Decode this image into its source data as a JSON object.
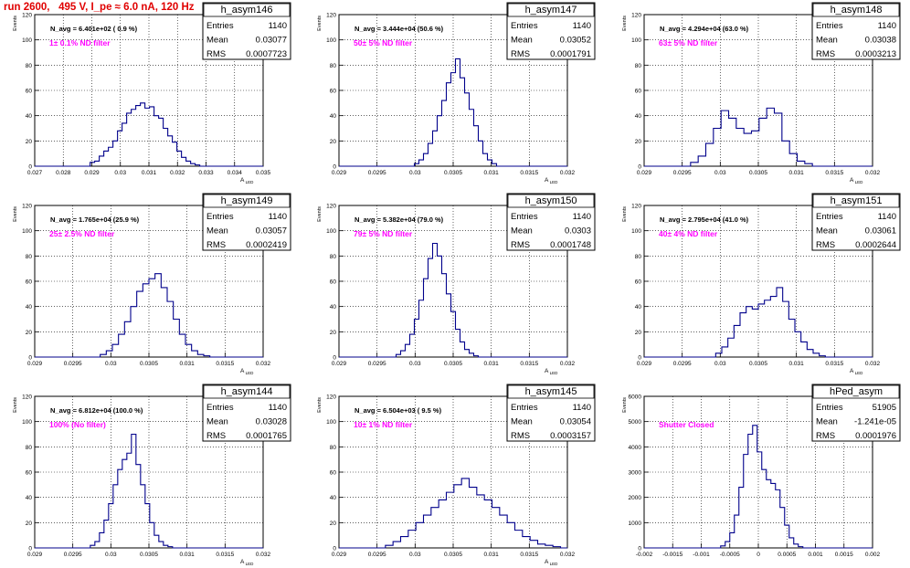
{
  "header": {
    "title": "run 2600,   495 V, I_pe ≈ 6.0 nA, 120 Hz"
  },
  "colors": {
    "title": "#e00000",
    "histogram": "#00008b",
    "annotation": "#ff00ff",
    "grid": "#000000"
  },
  "chart_data": [
    {
      "type": "histogram",
      "name": "h_asym146",
      "navg": "N_avg = 6.401e+02 ( 0.9 %)",
      "note": "1± 0.1% ND filter",
      "stats": [
        [
          "Entries",
          "1140"
        ],
        [
          "Mean",
          "0.03077"
        ],
        [
          "RMS",
          "0.0007723"
        ]
      ],
      "ylabel": "Events",
      "xlabel": "A_LED",
      "xlim": [
        0.027,
        0.035
      ],
      "xticks": [
        "0.027",
        "0.028",
        "0.029",
        "0.03",
        "0.031",
        "0.032",
        "0.033",
        "0.034",
        "0.035"
      ],
      "ylim": [
        0,
        120
      ],
      "yticks": [
        "0",
        "20",
        "40",
        "60",
        "80",
        "100",
        "120"
      ],
      "centers": [
        0.02902,
        0.02918,
        0.02934,
        0.0295,
        0.02966,
        0.02982,
        0.02998,
        0.03014,
        0.0303,
        0.03046,
        0.03062,
        0.03078,
        0.03094,
        0.0311,
        0.03126,
        0.03142,
        0.03158,
        0.03174,
        0.0319,
        0.03206,
        0.03222,
        0.03238,
        0.03254,
        0.0327
      ],
      "values": [
        3,
        4,
        8,
        12,
        15,
        20,
        28,
        34,
        42,
        45,
        48,
        50,
        46,
        47,
        40,
        38,
        30,
        24,
        19,
        12,
        7,
        4,
        2,
        1
      ]
    },
    {
      "type": "histogram",
      "name": "h_asym147",
      "navg": "N_avg = 3.444e+04 (50.6 %)",
      "note": "50± 5% ND filter",
      "stats": [
        [
          "Entries",
          "1140"
        ],
        [
          "Mean",
          "0.03052"
        ],
        [
          "RMS",
          "0.0001791"
        ]
      ],
      "ylabel": "Events",
      "xlabel": "A_LED",
      "xlim": [
        0.029,
        0.032
      ],
      "xticks": [
        "0.029",
        "0.0295",
        "0.03",
        "0.0305",
        "0.031",
        "0.0315",
        "0.032"
      ],
      "ylim": [
        0,
        120
      ],
      "yticks": [
        "0",
        "20",
        "40",
        "60",
        "80",
        "100",
        "120"
      ],
      "centers": [
        0.03002,
        0.03008,
        0.03014,
        0.0302,
        0.03026,
        0.03032,
        0.03038,
        0.03044,
        0.0305,
        0.03056,
        0.03062,
        0.03068,
        0.03074,
        0.0308,
        0.03086,
        0.03092,
        0.03098,
        0.03104
      ],
      "values": [
        2,
        5,
        10,
        18,
        28,
        40,
        52,
        66,
        74,
        85,
        70,
        58,
        45,
        32,
        20,
        10,
        5,
        2
      ]
    },
    {
      "type": "histogram",
      "name": "h_asym148",
      "navg": "N_avg = 4.294e+04 (63.0 %)",
      "note": "63± 5% ND filter",
      "stats": [
        [
          "Entries",
          "1140"
        ],
        [
          "Mean",
          "0.03038"
        ],
        [
          "RMS",
          "0.0003213"
        ]
      ],
      "ylabel": "Events",
      "xlabel": "A_LED",
      "xlim": [
        0.029,
        0.032
      ],
      "xticks": [
        "0.029",
        "0.0295",
        "0.03",
        "0.0305",
        "0.031",
        "0.0315",
        "0.032"
      ],
      "ylim": [
        0,
        120
      ],
      "yticks": [
        "0",
        "20",
        "40",
        "60",
        "80",
        "100",
        "120"
      ],
      "centers": [
        0.02966,
        0.02976,
        0.02986,
        0.02996,
        0.03006,
        0.03016,
        0.03026,
        0.03036,
        0.03046,
        0.03056,
        0.03066,
        0.03076,
        0.03086,
        0.03096,
        0.03106,
        0.03116
      ],
      "values": [
        3,
        8,
        18,
        30,
        44,
        38,
        30,
        26,
        28,
        38,
        46,
        42,
        20,
        10,
        4,
        2
      ]
    },
    {
      "type": "histogram",
      "name": "h_asym149",
      "navg": "N_avg = 1.765e+04 (25.9 %)",
      "note": "25± 2.5% ND filter",
      "stats": [
        [
          "Entries",
          "1140"
        ],
        [
          "Mean",
          "0.03057"
        ],
        [
          "RMS",
          "0.0002419"
        ]
      ],
      "ylabel": "Events",
      "xlabel": "A_LED",
      "xlim": [
        0.029,
        0.032
      ],
      "xticks": [
        "0.029",
        "0.0295",
        "0.03",
        "0.0305",
        "0.031",
        "0.0315",
        "0.032"
      ],
      "ylim": [
        0,
        120
      ],
      "yticks": [
        "0",
        "20",
        "40",
        "60",
        "80",
        "100",
        "120"
      ],
      "centers": [
        0.0299,
        0.02998,
        0.03006,
        0.03014,
        0.03022,
        0.0303,
        0.03038,
        0.03046,
        0.03054,
        0.03062,
        0.0307,
        0.03078,
        0.03086,
        0.03094,
        0.03102,
        0.0311,
        0.03118,
        0.03126
      ],
      "values": [
        2,
        5,
        10,
        18,
        28,
        40,
        52,
        58,
        62,
        66,
        55,
        44,
        30,
        18,
        10,
        5,
        2,
        1
      ]
    },
    {
      "type": "histogram",
      "name": "h_asym150",
      "navg": "N_avg = 5.382e+04 (79.0 %)",
      "note": "79± 5% ND filter",
      "stats": [
        [
          "Entries",
          "1140"
        ],
        [
          "Mean",
          "0.0303"
        ],
        [
          "RMS",
          "0.0001748"
        ]
      ],
      "ylabel": "Events",
      "xlabel": "A_LED",
      "xlim": [
        0.029,
        0.032
      ],
      "xticks": [
        "0.029",
        "0.0295",
        "0.03",
        "0.0305",
        "0.031",
        "0.0315",
        "0.032"
      ],
      "ylim": [
        0,
        120
      ],
      "yticks": [
        "0",
        "20",
        "40",
        "60",
        "80",
        "100",
        "120"
      ],
      "centers": [
        0.02978,
        0.02984,
        0.0299,
        0.02996,
        0.03002,
        0.03008,
        0.03014,
        0.0302,
        0.03026,
        0.03032,
        0.03038,
        0.03044,
        0.0305,
        0.03056,
        0.03062,
        0.03068,
        0.03074,
        0.0308
      ],
      "values": [
        2,
        5,
        10,
        18,
        30,
        45,
        62,
        78,
        90,
        80,
        66,
        50,
        36,
        22,
        12,
        6,
        3,
        1
      ]
    },
    {
      "type": "histogram",
      "name": "h_asym151",
      "navg": "N_avg = 2.795e+04 (41.0 %)",
      "note": "40± 4% ND filter",
      "stats": [
        [
          "Entries",
          "1140"
        ],
        [
          "Mean",
          "0.03061"
        ],
        [
          "RMS",
          "0.0002644"
        ]
      ],
      "ylabel": "Events",
      "xlabel": "A_LED",
      "xlim": [
        0.029,
        0.032
      ],
      "xticks": [
        "0.029",
        "0.0295",
        "0.03",
        "0.0305",
        "0.031",
        "0.0315",
        "0.032"
      ],
      "ylim": [
        0,
        120
      ],
      "yticks": [
        "0",
        "20",
        "40",
        "60",
        "80",
        "100",
        "120"
      ],
      "centers": [
        0.02998,
        0.03006,
        0.03014,
        0.03022,
        0.0303,
        0.03038,
        0.03046,
        0.03054,
        0.03062,
        0.0307,
        0.03078,
        0.03086,
        0.03094,
        0.03102,
        0.0311,
        0.03118,
        0.03126,
        0.03134
      ],
      "values": [
        3,
        8,
        15,
        25,
        35,
        40,
        38,
        42,
        45,
        48,
        55,
        44,
        30,
        20,
        12,
        6,
        3,
        1
      ]
    },
    {
      "type": "histogram",
      "name": "h_asym144",
      "navg": "N_avg = 6.812e+04 (100.0 %)",
      "note": "100% (No filter)",
      "stats": [
        [
          "Entries",
          "1140"
        ],
        [
          "Mean",
          "0.03028"
        ],
        [
          "RMS",
          "0.0001765"
        ]
      ],
      "ylabel": "Events",
      "xlabel": "A_LED",
      "xlim": [
        0.029,
        0.032
      ],
      "xticks": [
        "0.029",
        "0.0295",
        "0.03",
        "0.0305",
        "0.031",
        "0.0315",
        "0.032"
      ],
      "ylim": [
        0,
        120
      ],
      "yticks": [
        "0",
        "20",
        "40",
        "60",
        "80",
        "100",
        "120"
      ],
      "centers": [
        0.02976,
        0.02982,
        0.02988,
        0.02994,
        0.03,
        0.03006,
        0.03012,
        0.03018,
        0.03024,
        0.0303,
        0.03036,
        0.03042,
        0.03048,
        0.03054,
        0.0306,
        0.03066,
        0.03072,
        0.03078
      ],
      "values": [
        2,
        5,
        12,
        22,
        35,
        50,
        62,
        70,
        75,
        90,
        66,
        50,
        35,
        20,
        10,
        5,
        2,
        1
      ]
    },
    {
      "type": "histogram",
      "name": "h_asym145",
      "navg": "N_avg = 6.504e+03 ( 9.5 %)",
      "note": "10± 1% ND filter",
      "stats": [
        [
          "Entries",
          "1140"
        ],
        [
          "Mean",
          "0.03054"
        ],
        [
          "RMS",
          "0.0003157"
        ]
      ],
      "ylabel": "Events",
      "xlabel": "A_LED",
      "xlim": [
        0.029,
        0.032
      ],
      "xticks": [
        "0.029",
        "0.0295",
        "0.03",
        "0.0305",
        "0.031",
        "0.0315",
        "0.032"
      ],
      "ylim": [
        0,
        120
      ],
      "yticks": [
        "0",
        "20",
        "40",
        "60",
        "80",
        "100",
        "120"
      ],
      "centers": [
        0.02966,
        0.02976,
        0.02986,
        0.02996,
        0.03006,
        0.03016,
        0.03026,
        0.03036,
        0.03046,
        0.03056,
        0.03066,
        0.03076,
        0.03086,
        0.03096,
        0.03106,
        0.03116,
        0.03126,
        0.03136,
        0.03146,
        0.03156,
        0.03166,
        0.03176,
        0.03186
      ],
      "values": [
        2,
        5,
        9,
        14,
        20,
        26,
        32,
        38,
        44,
        50,
        55,
        48,
        42,
        38,
        32,
        26,
        20,
        14,
        9,
        6,
        3,
        2,
        1
      ]
    },
    {
      "type": "histogram",
      "name": "hPed_asym",
      "navg": "",
      "note": "Shutter Closed",
      "stats": [
        [
          "Entries",
          "51905"
        ],
        [
          "Mean",
          "-1.241e-05"
        ],
        [
          "RMS",
          "0.0001976"
        ]
      ],
      "ylabel": "Events",
      "xlabel": "",
      "xlim": [
        -0.002,
        0.002
      ],
      "xticks": [
        "-0.002",
        "-0.0015",
        "-0.001",
        "-0.0005",
        "0",
        "0.0005",
        "0.001",
        "0.0015",
        "0.002"
      ],
      "ylim": [
        0,
        6000
      ],
      "yticks": [
        "0",
        "1000",
        "2000",
        "3000",
        "4000",
        "5000",
        "6000"
      ],
      "centers": [
        -0.00062,
        -0.00054,
        -0.00046,
        -0.00038,
        -0.0003,
        -0.00022,
        -0.00014,
        -6e-05,
        2e-05,
        0.0001,
        0.00018,
        0.00026,
        0.00034,
        0.00042,
        0.0005,
        0.00058,
        0.00066,
        0.00074
      ],
      "values": [
        80,
        250,
        600,
        1300,
        2400,
        3700,
        4500,
        4850,
        3800,
        3100,
        2700,
        2550,
        2300,
        1600,
        900,
        400,
        150,
        50
      ]
    }
  ]
}
